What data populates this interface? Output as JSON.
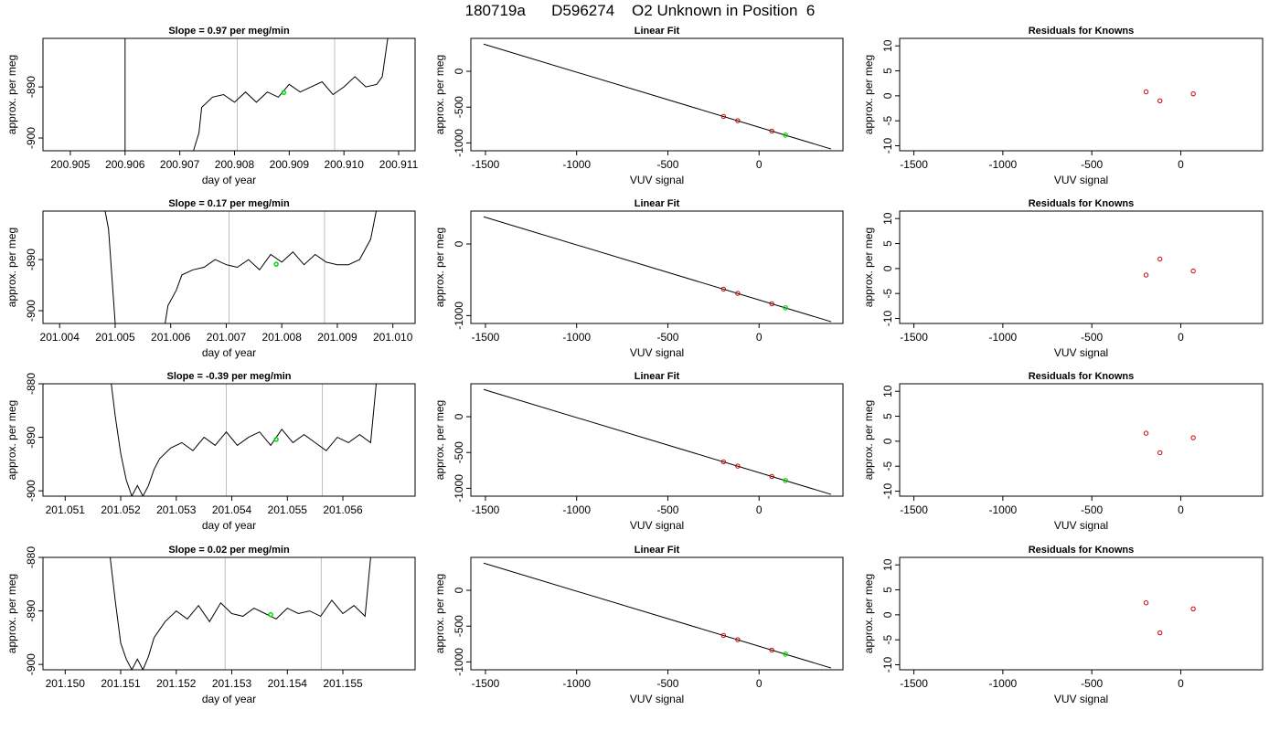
{
  "figure": {
    "title": "180719a      D596274    O2 Unknown in Position  6"
  },
  "style": {
    "trace_color": "#000000",
    "vline_color": "#bebebe",
    "known_point_color": "#cc0000",
    "unknown_point_color": "#00dd00"
  },
  "chart_data": [
    {
      "type": "line",
      "row": 0,
      "col": 0,
      "title": "Slope =  0.97  per meg/min",
      "xlabel": "day of year",
      "ylabel": "approx. per meg",
      "xlim": [
        200.9045,
        200.9113
      ],
      "ylim": [
        -902.5,
        -880.5
      ],
      "xticks": [
        200.905,
        200.906,
        200.907,
        200.908,
        200.909,
        200.91,
        200.911
      ],
      "xtick_labels": [
        "200.905",
        "200.906",
        "200.907",
        "200.908",
        "200.909",
        "200.910",
        "200.911"
      ],
      "yticks": [
        -900,
        -890
      ],
      "ytick_labels": [
        "-900",
        "-890"
      ],
      "vlines": [
        200.90805,
        200.90983
      ],
      "series": [
        {
          "x": [
            200.906,
            200.906,
            200.9064,
            200.907,
            200.90725,
            200.90735,
            200.9074,
            200.9076,
            200.9078,
            200.908,
            200.9082,
            200.9084,
            200.9086,
            200.9088,
            200.909,
            200.9092,
            200.9094,
            200.9096,
            200.9098,
            200.91,
            200.9102,
            200.9104,
            200.9106,
            200.9107,
            200.9108
          ],
          "y": [
            -880.5,
            -902.5,
            -910,
            -910,
            -902.5,
            -899,
            -894,
            -892,
            -891.5,
            -893,
            -891,
            -893,
            -891,
            -892,
            -889.5,
            -891,
            -890,
            -889,
            -891.5,
            -890,
            -888,
            -890,
            -889.5,
            -888,
            -880.5
          ]
        }
      ],
      "unknown_point": {
        "x": 200.9089,
        "y": -891.1
      }
    },
    {
      "type": "scatter",
      "row": 0,
      "col": 1,
      "title": "Linear Fit",
      "xlabel": "VUV signal",
      "ylabel": "approx. per meg",
      "xlim": [
        -1580,
        460
      ],
      "ylim": [
        -1110,
        460
      ],
      "xticks": [
        -1500,
        -1000,
        -500,
        0
      ],
      "xtick_labels": [
        "-1500",
        "-1000",
        "-500",
        "0"
      ],
      "yticks": [
        -1000,
        -500,
        0
      ],
      "ytick_labels": [
        "-1000",
        "-500",
        "0"
      ],
      "fit_line": [
        {
          "x": -1510,
          "y": 380
        },
        {
          "x": 395,
          "y": -1085
        }
      ],
      "knowns": [
        {
          "x": -195,
          "y": -630
        },
        {
          "x": -117,
          "y": -690
        },
        {
          "x": 70,
          "y": -835
        }
      ],
      "unknown": {
        "x": 145,
        "y": -891
      }
    },
    {
      "type": "scatter",
      "row": 0,
      "col": 2,
      "title": "Residuals for Knowns",
      "xlabel": "VUV signal",
      "ylabel": "approx. per meg",
      "xlim": [
        -1580,
        460
      ],
      "ylim": [
        -11,
        11.5
      ],
      "xticks": [
        -1500,
        -1000,
        -500,
        0
      ],
      "xtick_labels": [
        "-1500",
        "-1000",
        "-500",
        "0"
      ],
      "yticks": [
        -10,
        -5,
        0,
        5,
        10
      ],
      "ytick_labels": [
        "-10",
        "-5",
        "0",
        "5",
        "10"
      ],
      "points": [
        {
          "x": -195,
          "y": 0.8
        },
        {
          "x": -117,
          "y": -1.0
        },
        {
          "x": 70,
          "y": 0.4
        }
      ]
    },
    {
      "type": "line",
      "row": 1,
      "col": 0,
      "title": "Slope =  0.17  per meg/min",
      "xlabel": "day of year",
      "ylabel": "approx. per meg",
      "xlim": [
        201.0037,
        201.0104
      ],
      "ylim": [
        -902.5,
        -880.5
      ],
      "xticks": [
        201.004,
        201.005,
        201.006,
        201.007,
        201.008,
        201.009,
        201.01
      ],
      "xtick_labels": [
        "201.004",
        "201.005",
        "201.006",
        "201.007",
        "201.008",
        "201.009",
        "201.010"
      ],
      "yticks": [
        -900,
        -890
      ],
      "ytick_labels": [
        "-900",
        "-890"
      ],
      "vlines": [
        201.00705,
        201.00877
      ],
      "series": [
        {
          "x": [
            201.00482,
            201.00488,
            201.005,
            201.0059,
            201.00595,
            201.0061,
            201.0062,
            201.0064,
            201.0066,
            201.0068,
            201.007,
            201.0072,
            201.0074,
            201.0076,
            201.0078,
            201.008,
            201.0082,
            201.0084,
            201.0086,
            201.0088,
            201.009,
            201.0092,
            201.0094,
            201.0096,
            201.0097
          ],
          "y": [
            -880.5,
            -884,
            -902.5,
            -902.5,
            -899,
            -896,
            -893,
            -892,
            -891.5,
            -890,
            -891,
            -891.5,
            -890,
            -892,
            -889,
            -890.5,
            -888.5,
            -891,
            -889,
            -890.5,
            -891,
            -891,
            -890,
            -886,
            -880.5
          ]
        }
      ],
      "unknown_point": {
        "x": 201.0079,
        "y": -890.9
      }
    },
    {
      "type": "scatter",
      "row": 1,
      "col": 1,
      "title": "Linear Fit",
      "xlabel": "VUV signal",
      "ylabel": "approx. per meg",
      "xlim": [
        -1580,
        460
      ],
      "ylim": [
        -1110,
        460
      ],
      "xticks": [
        -1500,
        -1000,
        -500,
        0
      ],
      "xtick_labels": [
        "-1500",
        "-1000",
        "-500",
        "0"
      ],
      "yticks": [
        -1000,
        0
      ],
      "ytick_labels": [
        "-1000",
        "0"
      ],
      "fit_line": [
        {
          "x": -1510,
          "y": 380
        },
        {
          "x": 395,
          "y": -1085
        }
      ],
      "knowns": [
        {
          "x": -195,
          "y": -630
        },
        {
          "x": -117,
          "y": -690
        },
        {
          "x": 70,
          "y": -835
        }
      ],
      "unknown": {
        "x": 145,
        "y": -891
      }
    },
    {
      "type": "scatter",
      "row": 1,
      "col": 2,
      "title": "Residuals for Knowns",
      "xlabel": "VUV signal",
      "ylabel": "approx. per meg",
      "xlim": [
        -1580,
        460
      ],
      "ylim": [
        -11,
        11.5
      ],
      "xticks": [
        -1500,
        -1000,
        -500,
        0
      ],
      "xtick_labels": [
        "-1500",
        "-1000",
        "-500",
        "0"
      ],
      "yticks": [
        -10,
        -5,
        0,
        5,
        10
      ],
      "ytick_labels": [
        "-10",
        "-5",
        "0",
        "5",
        "10"
      ],
      "points": [
        {
          "x": -195,
          "y": -1.3
        },
        {
          "x": -117,
          "y": 1.9
        },
        {
          "x": 70,
          "y": -0.5
        }
      ]
    },
    {
      "type": "line",
      "row": 2,
      "col": 0,
      "title": "Slope =  -0.39  per meg/min",
      "xlabel": "day of year",
      "ylabel": "approx. per meg",
      "xlim": [
        201.0506,
        201.0573
      ],
      "ylim": [
        -901,
        -880
      ],
      "xticks": [
        201.051,
        201.052,
        201.053,
        201.054,
        201.055,
        201.056
      ],
      "xtick_labels": [
        "201.051",
        "201.052",
        "201.053",
        "201.054",
        "201.055",
        "201.056"
      ],
      "yticks": [
        -900,
        -890,
        -880
      ],
      "ytick_labels": [
        "-900",
        "-890",
        "-880"
      ],
      "vlines": [
        201.0539,
        201.05563
      ],
      "series": [
        {
          "x": [
            201.05183,
            201.0519,
            201.052,
            201.0521,
            201.0522,
            201.0523,
            201.0524,
            201.0525,
            201.0526,
            201.0527,
            201.0529,
            201.0531,
            201.0533,
            201.0535,
            201.0537,
            201.0539,
            201.0541,
            201.0543,
            201.0545,
            201.0547,
            201.0549,
            201.0551,
            201.0553,
            201.0555,
            201.0557,
            201.0559,
            201.0561,
            201.0563,
            201.0565,
            201.0566
          ],
          "y": [
            -880,
            -886,
            -893,
            -898,
            -901,
            -899,
            -901,
            -899,
            -896,
            -894,
            -892,
            -891,
            -892.5,
            -890,
            -891.5,
            -889,
            -891.5,
            -890,
            -889,
            -891.5,
            -888.5,
            -891,
            -889.5,
            -891,
            -892.5,
            -890,
            -891,
            -889.5,
            -891,
            -880
          ]
        }
      ],
      "unknown_point": {
        "x": 201.0548,
        "y": -890.4
      }
    },
    {
      "type": "scatter",
      "row": 2,
      "col": 1,
      "title": "Linear Fit",
      "xlabel": "VUV signal",
      "ylabel": "approx. per meg",
      "xlim": [
        -1580,
        460
      ],
      "ylim": [
        -1110,
        460
      ],
      "xticks": [
        -1500,
        -1000,
        -500,
        0
      ],
      "xtick_labels": [
        "-1500",
        "-1000",
        "-500",
        "0"
      ],
      "yticks": [
        -1000,
        -500,
        0
      ],
      "ytick_labels": [
        "-1000",
        "-500",
        "0"
      ],
      "fit_line": [
        {
          "x": -1510,
          "y": 380
        },
        {
          "x": 395,
          "y": -1085
        }
      ],
      "knowns": [
        {
          "x": -195,
          "y": -630
        },
        {
          "x": -117,
          "y": -690
        },
        {
          "x": 70,
          "y": -835
        }
      ],
      "unknown": {
        "x": 145,
        "y": -891
      }
    },
    {
      "type": "scatter",
      "row": 2,
      "col": 2,
      "title": "Residuals for Knowns",
      "xlabel": "VUV signal",
      "ylabel": "approx. per meg",
      "xlim": [
        -1580,
        460
      ],
      "ylim": [
        -11,
        11.5
      ],
      "xticks": [
        -1500,
        -1000,
        -500,
        0
      ],
      "xtick_labels": [
        "-1500",
        "-1000",
        "-500",
        "0"
      ],
      "yticks": [
        -10,
        -5,
        0,
        5,
        10
      ],
      "ytick_labels": [
        "-10",
        "-5",
        "0",
        "5",
        "10"
      ],
      "points": [
        {
          "x": -195,
          "y": 1.6
        },
        {
          "x": -117,
          "y": -2.3
        },
        {
          "x": 70,
          "y": 0.7
        }
      ]
    },
    {
      "type": "line",
      "row": 3,
      "col": 0,
      "title": "Slope =  0.02  per meg/min",
      "xlabel": "day of year",
      "ylabel": "approx. per meg",
      "xlim": [
        201.1496,
        201.1563
      ],
      "ylim": [
        -901,
        -880
      ],
      "xticks": [
        201.15,
        201.151,
        201.152,
        201.153,
        201.154,
        201.155
      ],
      "xtick_labels": [
        "201.150",
        "201.151",
        "201.152",
        "201.153",
        "201.154",
        "201.155"
      ],
      "yticks": [
        -900,
        -890,
        -880
      ],
      "ytick_labels": [
        "-900",
        "-890",
        "-880"
      ],
      "vlines": [
        201.15288,
        201.15461
      ],
      "series": [
        {
          "x": [
            201.15081,
            201.1509,
            201.151,
            201.1511,
            201.1512,
            201.1513,
            201.1514,
            201.1515,
            201.1516,
            201.1518,
            201.152,
            201.1522,
            201.1524,
            201.1526,
            201.1528,
            201.153,
            201.1532,
            201.1534,
            201.1536,
            201.1538,
            201.154,
            201.1542,
            201.1544,
            201.1546,
            201.1548,
            201.155,
            201.1552,
            201.1554,
            201.1555
          ],
          "y": [
            -880,
            -888,
            -896,
            -899,
            -901,
            -899,
            -901,
            -898.5,
            -895,
            -892,
            -890,
            -891.5,
            -889,
            -892,
            -888.5,
            -890.5,
            -891,
            -889.5,
            -890.5,
            -891.5,
            -889.5,
            -890.5,
            -890,
            -891,
            -888,
            -890.5,
            -889,
            -891,
            -880
          ]
        }
      ],
      "unknown_point": {
        "x": 201.1537,
        "y": -890.7
      }
    },
    {
      "type": "scatter",
      "row": 3,
      "col": 1,
      "title": "Linear Fit",
      "xlabel": "VUV signal",
      "ylabel": "approx. per meg",
      "xlim": [
        -1580,
        460
      ],
      "ylim": [
        -1110,
        460
      ],
      "xticks": [
        -1500,
        -1000,
        -500,
        0
      ],
      "xtick_labels": [
        "-1500",
        "-1000",
        "-500",
        "0"
      ],
      "yticks": [
        -1000,
        -500,
        0
      ],
      "ytick_labels": [
        "-1000",
        "-500",
        "0"
      ],
      "fit_line": [
        {
          "x": -1510,
          "y": 380
        },
        {
          "x": 395,
          "y": -1085
        }
      ],
      "knowns": [
        {
          "x": -195,
          "y": -630
        },
        {
          "x": -117,
          "y": -690
        },
        {
          "x": 70,
          "y": -835
        }
      ],
      "unknown": {
        "x": 145,
        "y": -891
      }
    },
    {
      "type": "scatter",
      "row": 3,
      "col": 2,
      "title": "Residuals for Knowns",
      "xlabel": "VUV signal",
      "ylabel": "approx. per meg",
      "xlim": [
        -1580,
        460
      ],
      "ylim": [
        -11,
        11.5
      ],
      "xticks": [
        -1500,
        -1000,
        -500,
        0
      ],
      "xtick_labels": [
        "-1500",
        "-1000",
        "-500",
        "0"
      ],
      "yticks": [
        -10,
        -5,
        0,
        5,
        10
      ],
      "ytick_labels": [
        "-10",
        "-5",
        "0",
        "5",
        "10"
      ],
      "points": [
        {
          "x": -195,
          "y": 2.4
        },
        {
          "x": -117,
          "y": -3.6
        },
        {
          "x": 70,
          "y": 1.2
        }
      ]
    }
  ]
}
